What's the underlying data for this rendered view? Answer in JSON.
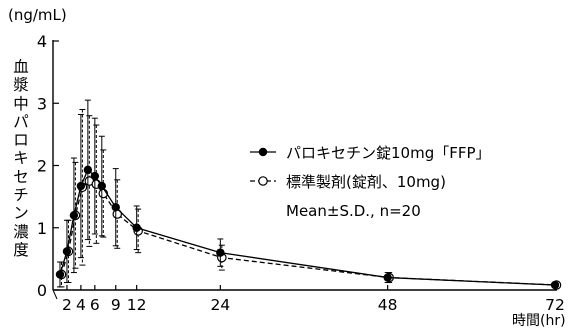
{
  "chart_data": {
    "type": "line",
    "y_unit": "(ng/mL)",
    "ylabel": "血漿中パロキセチン濃度",
    "x_unit": "時間(hr)",
    "x_ticks": [
      2,
      4,
      6,
      9,
      12,
      24,
      48,
      72
    ],
    "x_tick_labels": [
      "2",
      "4",
      "6",
      "9",
      "12",
      "24",
      "48",
      "72"
    ],
    "y_ticks": [
      0,
      1,
      2,
      3,
      4
    ],
    "y_tick_labels": [
      "0",
      "1",
      "2",
      "3",
      "4"
    ],
    "xlim": [
      0,
      72
    ],
    "ylim": [
      0,
      4
    ],
    "grid": false,
    "legend_position": "right",
    "annotation": "Mean±S.D.,  n=20",
    "series": [
      {
        "name": "パロキセチン錠10mg「FFP」",
        "marker": "filled-circle",
        "line_style": "solid",
        "color": "#000000",
        "x": [
          1,
          2,
          3,
          4,
          5,
          6,
          7,
          9,
          12,
          24,
          48,
          72
        ],
        "y": [
          0.25,
          0.62,
          1.2,
          1.67,
          1.93,
          1.83,
          1.67,
          1.33,
          1.0,
          0.6,
          0.2,
          0.08
        ],
        "sd": [
          0.2,
          0.5,
          0.92,
          1.15,
          1.12,
          0.93,
          0.8,
          0.62,
          0.35,
          0.22,
          0.08,
          0.04
        ]
      },
      {
        "name": "標準製剤(錠剤、10mg)",
        "marker": "open-circle",
        "line_style": "dashed",
        "color": "#000000",
        "x": [
          1,
          2,
          3,
          4,
          5,
          6,
          7,
          9,
          12,
          24,
          48,
          72
        ],
        "y": [
          0.25,
          0.62,
          1.2,
          1.65,
          1.75,
          1.7,
          1.55,
          1.22,
          0.95,
          0.52,
          0.2,
          0.08
        ],
        "sd": [
          0.2,
          0.5,
          0.85,
          1.25,
          1.05,
          0.95,
          0.7,
          0.55,
          0.35,
          0.2,
          0.08,
          0.04
        ]
      }
    ]
  }
}
